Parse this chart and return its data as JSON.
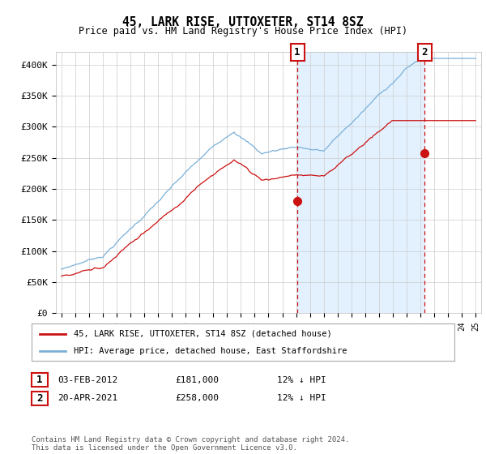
{
  "title": "45, LARK RISE, UTTOXETER, ST14 8SZ",
  "subtitle": "Price paid vs. HM Land Registry's House Price Index (HPI)",
  "ylim": [
    0,
    420000
  ],
  "yticks": [
    0,
    50000,
    100000,
    150000,
    200000,
    250000,
    300000,
    350000,
    400000
  ],
  "ytick_labels": [
    "£0",
    "£50K",
    "£100K",
    "£150K",
    "£200K",
    "£250K",
    "£300K",
    "£350K",
    "£400K"
  ],
  "x_start_year": 1995,
  "x_end_year": 2025,
  "hpi_color": "#7ab0d8",
  "hpi_fill_color": "#ddeeff",
  "price_color": "#cc1111",
  "marker1_year": 2012.09,
  "marker1_price": 181000,
  "marker2_year": 2021.3,
  "marker2_price": 258000,
  "legend_label1": "45, LARK RISE, UTTOXETER, ST14 8SZ (detached house)",
  "legend_label2": "HPI: Average price, detached house, East Staffordshire",
  "table_row1": [
    "1",
    "03-FEB-2012",
    "£181,000",
    "12% ↓ HPI"
  ],
  "table_row2": [
    "2",
    "20-APR-2021",
    "£258,000",
    "12% ↓ HPI"
  ],
  "footer": "Contains HM Land Registry data © Crown copyright and database right 2024.\nThis data is licensed under the Open Government Licence v3.0.",
  "background_color": "#ffffff",
  "grid_color": "#cccccc"
}
